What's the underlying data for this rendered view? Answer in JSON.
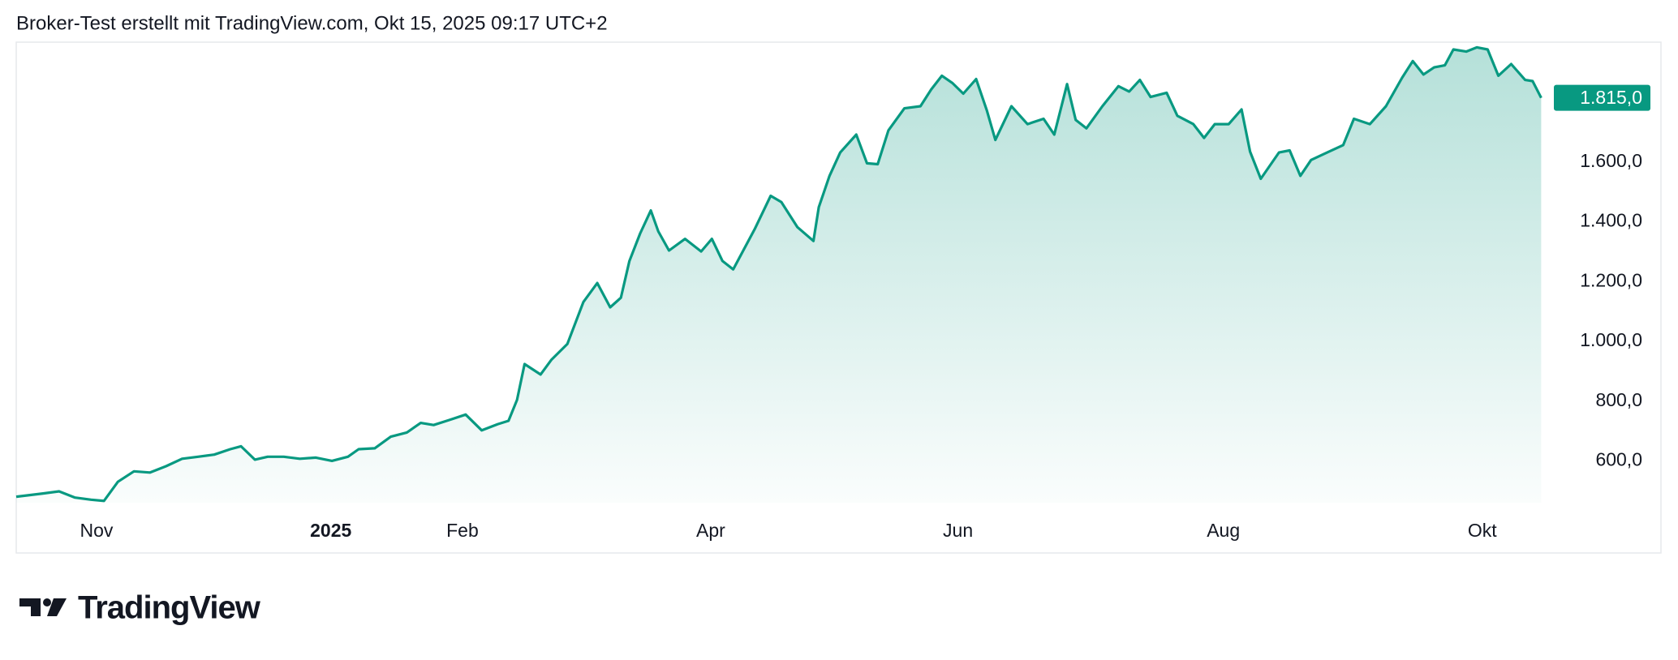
{
  "header": {
    "title": "Broker-Test erstellt mit TradingView.com, Okt 15, 2025 09:17 UTC+2"
  },
  "footer": {
    "brand": "TradingView"
  },
  "chart_data": {
    "type": "area",
    "color": "#089981",
    "x": [
      0,
      25,
      40,
      55,
      70,
      82,
      95,
      110,
      125,
      140,
      155,
      170,
      185,
      200,
      210,
      223,
      235,
      250,
      265,
      280,
      295,
      310,
      320,
      335,
      350,
      365,
      378,
      390,
      405,
      420,
      435,
      450,
      460,
      468,
      475,
      490,
      500,
      515,
      530,
      543,
      555,
      565,
      573,
      583,
      593,
      600,
      610,
      625,
      640,
      650,
      660,
      670,
      680,
      690,
      705,
      715,
      730,
      745,
      750,
      760,
      770,
      785,
      795,
      805,
      815,
      830,
      845,
      855,
      865,
      875,
      885,
      897,
      907,
      915,
      930,
      945,
      960,
      970,
      982,
      990,
      1000,
      1015,
      1030,
      1040,
      1050,
      1060,
      1075,
      1085,
      1100,
      1110,
      1120,
      1133,
      1145,
      1153,
      1163,
      1180,
      1190,
      1200,
      1210,
      1225,
      1240,
      1250,
      1265,
      1280,
      1295,
      1305,
      1315,
      1325,
      1335,
      1343,
      1355,
      1365,
      1375,
      1385,
      1397,
      1410,
      1417,
      1425
    ],
    "values": [
      480,
      491,
      498,
      477,
      470,
      466,
      530,
      565,
      561,
      582,
      607,
      614,
      621,
      639,
      649,
      604,
      614,
      614,
      607,
      611,
      600,
      614,
      639,
      642,
      681,
      695,
      727,
      720,
      737,
      755,
      702,
      723,
      734,
      804,
      924,
      889,
      938,
      991,
      1132,
      1195,
      1114,
      1146,
      1269,
      1361,
      1438,
      1368,
      1304,
      1343,
      1301,
      1343,
      1269,
      1241,
      1308,
      1375,
      1487,
      1466,
      1382,
      1336,
      1449,
      1554,
      1632,
      1692,
      1596,
      1593,
      1706,
      1780,
      1787,
      1843,
      1889,
      1864,
      1829,
      1878,
      1773,
      1674,
      1787,
      1727,
      1745,
      1692,
      1861,
      1741,
      1713,
      1787,
      1854,
      1836,
      1875,
      1818,
      1832,
      1755,
      1727,
      1681,
      1727,
      1727,
      1776,
      1635,
      1544,
      1632,
      1639,
      1554,
      1607,
      1632,
      1657,
      1745,
      1727,
      1787,
      1882,
      1938,
      1893,
      1917,
      1924,
      1977,
      1970,
      1984,
      1977,
      1889,
      1928,
      1875,
      1871,
      1815
    ],
    "last_value_label": "1.815,0",
    "xlim": [
      0,
      1427
    ],
    "xticks": [
      {
        "value": 75,
        "label": "Nov"
      },
      {
        "value": 294,
        "label": "2025"
      },
      {
        "value": 417,
        "label": "Feb"
      },
      {
        "value": 649,
        "label": "Apr"
      },
      {
        "value": 880,
        "label": "Jun"
      },
      {
        "value": 1128,
        "label": "Aug"
      },
      {
        "value": 1370,
        "label": "Okt"
      }
    ],
    "ylim": [
      460,
      2000
    ],
    "yticks": [
      {
        "value": 600,
        "label": "600,0"
      },
      {
        "value": 800,
        "label": "800,0"
      },
      {
        "value": 1000,
        "label": "1.000,0"
      },
      {
        "value": 1200,
        "label": "1.200,0"
      },
      {
        "value": 1400,
        "label": "1.400,0"
      },
      {
        "value": 1600,
        "label": "1.600,0"
      }
    ],
    "grid": false
  }
}
